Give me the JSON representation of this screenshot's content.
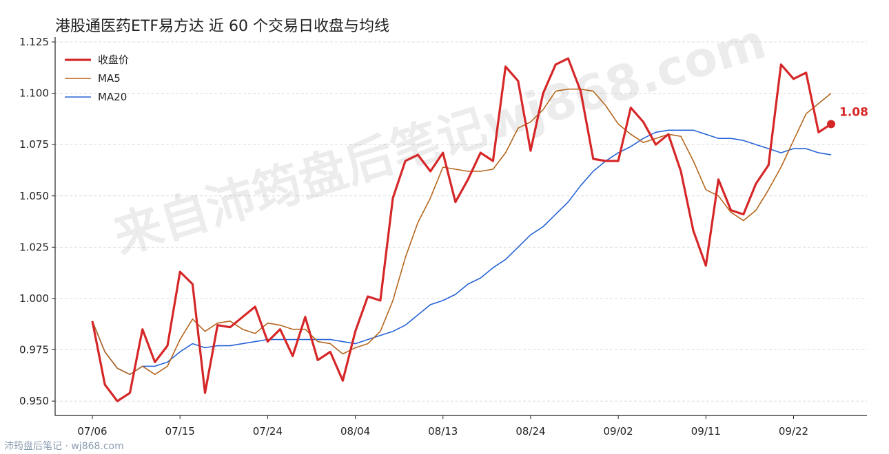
{
  "chart_data": {
    "type": "line",
    "title": "港股通医药ETF易方达 近 60 个交易日收盘与均线",
    "xlabel": "",
    "ylabel": "",
    "ylim": [
      0.943,
      1.126
    ],
    "yticks": [
      "0.950",
      "0.975",
      "1.000",
      "1.025",
      "1.050",
      "1.075",
      "1.100",
      "1.125"
    ],
    "ytick_values": [
      0.95,
      0.975,
      1.0,
      1.025,
      1.05,
      1.075,
      1.1,
      1.125
    ],
    "xtick_labels": [
      "07/06",
      "07/15",
      "07/24",
      "08/04",
      "08/13",
      "08/24",
      "09/02",
      "09/11",
      "09/22"
    ],
    "xtick_index": [
      0,
      7,
      14,
      21,
      28,
      35,
      42,
      49,
      56
    ],
    "grid": true,
    "legend_position": "top-left",
    "last_value_label": "1.08",
    "series": [
      {
        "name": "收盘价",
        "color": "#d62728",
        "values": [
          0.989,
          0.958,
          0.95,
          0.954,
          0.985,
          0.969,
          0.977,
          1.013,
          1.007,
          0.954,
          0.987,
          0.986,
          0.991,
          0.996,
          0.979,
          0.985,
          0.972,
          0.991,
          0.97,
          0.974,
          0.96,
          0.984,
          1.001,
          0.999,
          1.049,
          1.067,
          1.07,
          1.062,
          1.071,
          1.047,
          1.058,
          1.071,
          1.067,
          1.113,
          1.106,
          1.072,
          1.1,
          1.114,
          1.117,
          1.101,
          1.068,
          1.067,
          1.067,
          1.093,
          1.086,
          1.075,
          1.08,
          1.062,
          1.033,
          1.016,
          1.058,
          1.043,
          1.041,
          1.056,
          1.065,
          1.114,
          1.107,
          1.11,
          1.081,
          1.085
        ]
      },
      {
        "name": "MA5",
        "color": "#b5651d",
        "values": [
          0.989,
          0.974,
          0.966,
          0.963,
          0.967,
          0.963,
          0.967,
          0.98,
          0.99,
          0.984,
          0.988,
          0.989,
          0.985,
          0.983,
          0.988,
          0.987,
          0.985,
          0.985,
          0.979,
          0.978,
          0.973,
          0.976,
          0.978,
          0.984,
          0.999,
          1.02,
          1.037,
          1.049,
          1.064,
          1.063,
          1.062,
          1.062,
          1.063,
          1.071,
          1.083,
          1.086,
          1.092,
          1.101,
          1.102,
          1.102,
          1.101,
          1.094,
          1.085,
          1.08,
          1.076,
          1.078,
          1.08,
          1.079,
          1.067,
          1.053,
          1.05,
          1.042,
          1.038,
          1.043,
          1.053,
          1.064,
          1.077,
          1.09,
          1.095,
          1.1
        ]
      },
      {
        "name": "MA20",
        "color": "#2563d6",
        "values": [
          0.989,
          0.974,
          0.966,
          0.963,
          0.967,
          0.967,
          0.969,
          0.974,
          0.978,
          0.976,
          0.977,
          0.977,
          0.978,
          0.979,
          0.98,
          0.98,
          0.98,
          0.98,
          0.98,
          0.98,
          0.979,
          0.978,
          0.98,
          0.982,
          0.984,
          0.987,
          0.992,
          0.997,
          0.999,
          1.002,
          1.007,
          1.01,
          1.015,
          1.019,
          1.025,
          1.031,
          1.035,
          1.041,
          1.047,
          1.055,
          1.062,
          1.067,
          1.071,
          1.074,
          1.078,
          1.081,
          1.082,
          1.082,
          1.082,
          1.08,
          1.078,
          1.078,
          1.077,
          1.075,
          1.073,
          1.071,
          1.073,
          1.073,
          1.071,
          1.07
        ]
      }
    ]
  },
  "watermark": "来自沛筠盘后笔记wj868.com",
  "footer": "沛筠盘后笔记 · wj868.com"
}
